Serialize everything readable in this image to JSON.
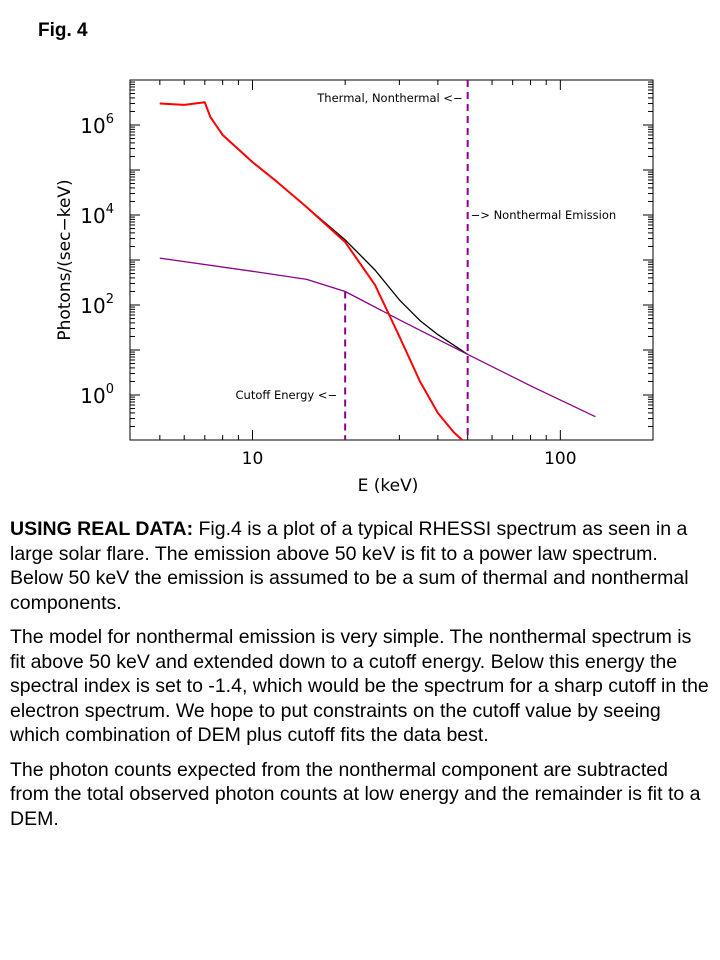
{
  "figure_label": "Fig. 4",
  "colors": {
    "total": "#000000",
    "thermal": "#ff0000",
    "nonthermal": "#8b008b",
    "marker": "#8b008b"
  },
  "chart_data": {
    "type": "line",
    "xlabel": "E (keV)",
    "ylabel": "Photons/(sec−keV)",
    "x_scale": "log",
    "y_scale": "log",
    "xlim": [
      4,
      200
    ],
    "ylim": [
      0.1,
      10000000
    ],
    "x_ticks": [
      {
        "value": 10,
        "label": "10"
      },
      {
        "value": 100,
        "label": "100"
      }
    ],
    "y_ticks": [
      {
        "value": 1,
        "base": "10",
        "exp": "0"
      },
      {
        "value": 100,
        "base": "10",
        "exp": "2"
      },
      {
        "value": 10000,
        "base": "10",
        "exp": "4"
      },
      {
        "value": 1000000,
        "base": "10",
        "exp": "6"
      }
    ],
    "series": [
      {
        "key": "total",
        "x": [
          5,
          6,
          7,
          7.3,
          8,
          10,
          12,
          15,
          20,
          25,
          30,
          35,
          40,
          50
        ],
        "y": [
          3000000,
          2800000,
          3200000,
          1500000,
          600000,
          150000,
          55000,
          15000,
          2800,
          600,
          130,
          45,
          22,
          8
        ]
      },
      {
        "key": "thermal",
        "x": [
          5,
          6,
          7,
          7.3,
          8,
          10,
          12,
          15,
          20,
          25,
          30,
          35,
          40,
          45,
          48
        ],
        "y": [
          3000000,
          2800000,
          3200000,
          1500000,
          600000,
          150000,
          55000,
          15000,
          2500,
          280,
          20,
          2,
          0.4,
          0.15,
          0.1
        ]
      },
      {
        "key": "nonthermal",
        "x": [
          5,
          10,
          15,
          20,
          30,
          50,
          80,
          130
        ],
        "y": [
          1100,
          560,
          370,
          200,
          47,
          8,
          1.6,
          0.33
        ]
      }
    ],
    "markers": [
      {
        "x": 50,
        "label": "Thermal, Nonthermal <−",
        "label2": "−> Nonthermal Emission"
      },
      {
        "x": 20,
        "label": "Cutoff Energy <−"
      }
    ]
  },
  "text": {
    "p1_lead": "USING REAL DATA:",
    "p1_body": "  Fig.4 is a plot of a typical RHESSI spectrum as seen in a large solar flare. The emission above 50 keV  is fit to a power law spectrum. Below 50 keV the emission is assumed to be a sum of thermal and nonthermal components.",
    "p2": "The model for nonthermal emission is very simple. The nonthermal spectrum is fit above 50 keV  and extended down to a cutoff energy. Below this energy the spectral index is set to -1.4, which would be the spectrum for a sharp cutoff in the electron spectrum.  We hope to put constraints on the cutoff value by seeing which combination of DEM plus cutoff fits the data best.",
    "p3": "The photon counts expected from the nonthermal component are subtracted from the total observed photon counts at low energy and the remainder is fit to a DEM."
  }
}
